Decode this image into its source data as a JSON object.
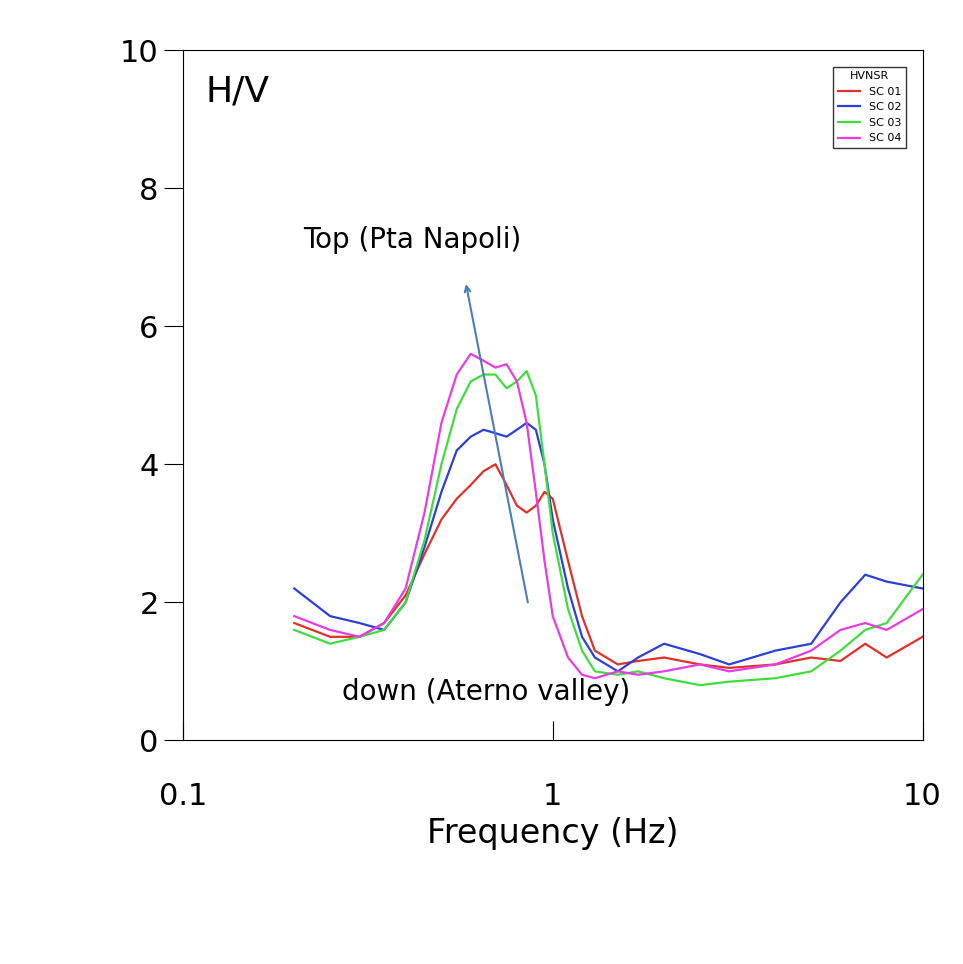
{
  "chart_data": {
    "type": "line",
    "x_label": "Frequency (Hz)",
    "annotations": [
      "H/V",
      "Top (Pta Napoli)",
      "down (Aterno valley)"
    ],
    "legend_title": "HVNSR",
    "legend": "upper right",
    "log": "x",
    "grid": false,
    "xlim": [
      0.1,
      10
    ],
    "xticks": [
      0.1,
      1,
      10
    ],
    "ylim": [
      0,
      10
    ],
    "yticks": [
      0,
      2,
      4,
      6,
      8,
      10
    ],
    "x": [
      0.2,
      0.25,
      0.3,
      0.35,
      0.4,
      0.45,
      0.5,
      0.55,
      0.6,
      0.65,
      0.7,
      0.75,
      0.8,
      0.85,
      0.9,
      0.95,
      1.0,
      1.1,
      1.2,
      1.3,
      1.5,
      1.7,
      2,
      2.5,
      3,
      4,
      5,
      6,
      7,
      8,
      10
    ],
    "series": [
      {
        "name": "SC 01",
        "color": "#e0302a",
        "values": [
          1.7,
          1.5,
          1.5,
          1.7,
          2.1,
          2.7,
          3.2,
          3.5,
          3.7,
          3.9,
          4.0,
          3.7,
          3.4,
          3.3,
          3.4,
          3.6,
          3.5,
          2.6,
          1.8,
          1.3,
          1.1,
          1.15,
          1.2,
          1.1,
          1.05,
          1.1,
          1.2,
          1.15,
          1.4,
          1.2,
          1.5
        ]
      },
      {
        "name": "SC 02",
        "color": "#2c3fd6",
        "values": [
          2.2,
          1.8,
          1.7,
          1.6,
          2.0,
          2.8,
          3.6,
          4.2,
          4.4,
          4.5,
          4.45,
          4.4,
          4.5,
          4.6,
          4.5,
          4.0,
          3.2,
          2.2,
          1.5,
          1.2,
          1.0,
          1.2,
          1.4,
          1.25,
          1.1,
          1.3,
          1.4,
          2.0,
          2.4,
          2.3,
          2.2
        ]
      },
      {
        "name": "SC 03",
        "color": "#3fdc3f",
        "values": [
          1.6,
          1.4,
          1.5,
          1.6,
          2.0,
          2.9,
          4.0,
          4.8,
          5.2,
          5.3,
          5.3,
          5.1,
          5.2,
          5.35,
          5.0,
          4.0,
          3.0,
          1.9,
          1.3,
          1.0,
          0.95,
          1.0,
          0.9,
          0.8,
          0.85,
          0.9,
          1.0,
          1.3,
          1.6,
          1.7,
          2.4
        ]
      },
      {
        "name": "SC 04",
        "color": "#e83be0",
        "values": [
          1.8,
          1.6,
          1.5,
          1.7,
          2.2,
          3.3,
          4.6,
          5.3,
          5.6,
          5.5,
          5.4,
          5.45,
          5.2,
          4.6,
          3.6,
          2.6,
          1.8,
          1.2,
          0.95,
          0.9,
          1.0,
          0.95,
          1.0,
          1.1,
          1.0,
          1.1,
          1.3,
          1.6,
          1.7,
          1.6,
          1.9
        ]
      }
    ]
  }
}
